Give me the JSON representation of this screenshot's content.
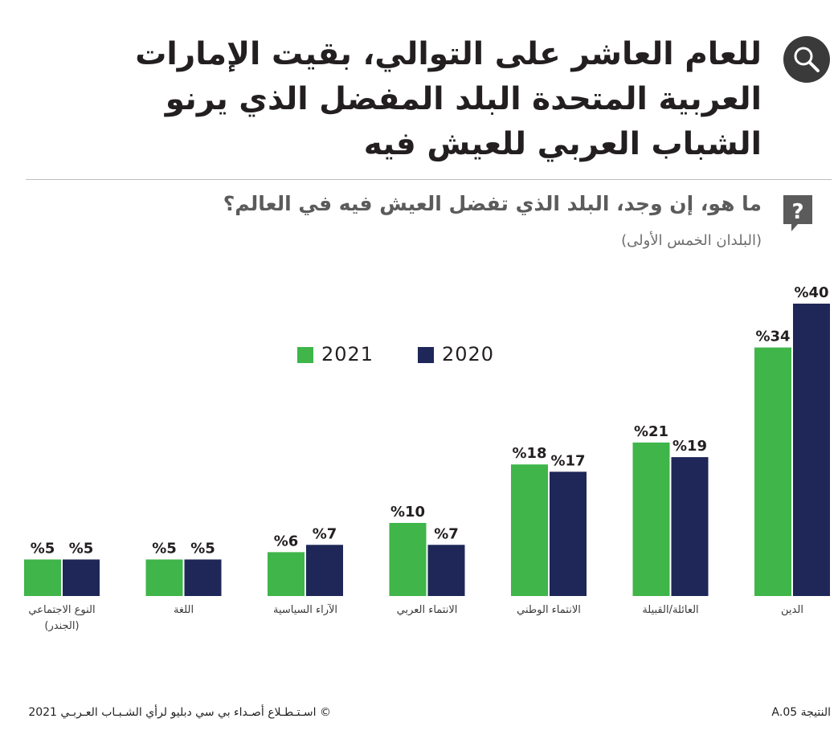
{
  "header": {
    "title": "للعام العاشر على التوالي، بقيت الإمارات العربية المتحدة البلد المفضل الذي يرنو الشباب العربي للعيش فيه",
    "question": "ما هو، إن وجد، البلد الذي تفضل العيش فيه في العالم؟",
    "subtitle": "(البلدان الخمس الأولى)"
  },
  "icons": {
    "title_icon": "magnifier-icon",
    "question_icon": "question-bubble-icon"
  },
  "colors": {
    "series_2021": "#3fb54a",
    "series_2020": "#1e2757",
    "text": "#231f20"
  },
  "chart_data": {
    "type": "bar",
    "categories": [
      "الدين",
      "العائلة/القبيلة",
      "الانتماء الوطني",
      "الانتماء العربي",
      "الآراء السياسية",
      "اللغة",
      "النوع الاجتماعي (الجندر)"
    ],
    "series": [
      {
        "name": "2021",
        "values": [
          34,
          21,
          18,
          10,
          6,
          5,
          5
        ],
        "labels": [
          "%34",
          "%21",
          "%18",
          "%10",
          "%6",
          "%5",
          "%5"
        ]
      },
      {
        "name": "2020",
        "values": [
          40,
          19,
          17,
          7,
          7,
          5,
          5
        ],
        "labels": [
          "%40",
          "%19",
          "%17",
          "%7",
          "%7",
          "%5",
          "%5"
        ]
      }
    ],
    "ylim": [
      0,
      40
    ],
    "grid": false,
    "legend_position": "top-center"
  },
  "footer": {
    "result": "النتيجة 05.A",
    "source": "©  اسـتـطـلاع أصـداء بي سي دبليو لرأي الشـبـاب العـربـي 2021"
  }
}
